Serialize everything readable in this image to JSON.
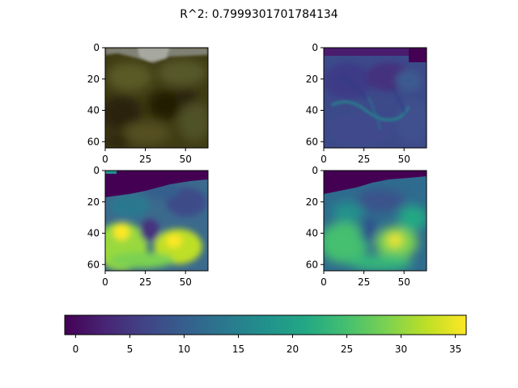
{
  "chart_data": {
    "type": "heatmap",
    "title": "R^2: 0.7999301701784134",
    "colormap": "viridis",
    "panels": [
      {
        "name": "",
        "kind": "rgb-image",
        "x_ticks": [
          "0",
          "25",
          "50"
        ],
        "y_ticks": [
          "0",
          "20",
          "40",
          "60"
        ],
        "xlim": [
          0,
          64
        ],
        "ylim": [
          64,
          0
        ]
      },
      {
        "name": "",
        "kind": "scalar-map",
        "x_ticks": [
          "0",
          "25",
          "50"
        ],
        "y_ticks": [
          "0",
          "20",
          "40",
          "60"
        ],
        "xlim": [
          0,
          64
        ],
        "ylim": [
          64,
          0
        ]
      },
      {
        "name": "",
        "kind": "scalar-map",
        "x_ticks": [
          "0",
          "25",
          "50"
        ],
        "y_ticks": [
          "0",
          "20",
          "40",
          "60"
        ],
        "xlim": [
          0,
          64
        ],
        "ylim": [
          64,
          0
        ]
      },
      {
        "name": "",
        "kind": "scalar-map",
        "x_ticks": [
          "0",
          "25",
          "50"
        ],
        "y_ticks": [
          "0",
          "20",
          "40",
          "60"
        ],
        "xlim": [
          0,
          64
        ],
        "ylim": [
          64,
          0
        ]
      }
    ],
    "colorbar": {
      "orientation": "horizontal",
      "range": [
        -1,
        36
      ],
      "ticks": [
        0,
        5,
        10,
        15,
        20,
        25,
        30,
        35
      ],
      "tick_labels": [
        "0",
        "5",
        "10",
        "15",
        "20",
        "25",
        "30",
        "35"
      ]
    }
  }
}
